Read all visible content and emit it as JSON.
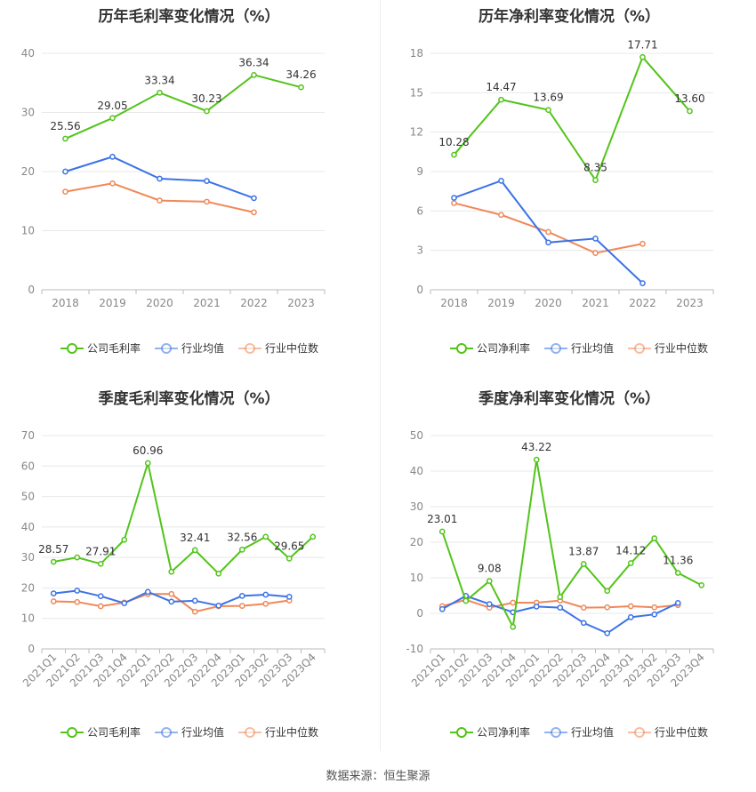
{
  "footer": "数据来源：恒生聚源",
  "colors": {
    "company": "#52c41a",
    "avg": "#3b73e6",
    "median": "#f08858",
    "grid": "#e8e8e8",
    "axis": "#bbbbbb"
  },
  "chart_data": [
    {
      "type": "line",
      "title": "历年毛利率变化情况（%）",
      "categories": [
        "2018",
        "2019",
        "2020",
        "2021",
        "2022",
        "2023"
      ],
      "ylim": [
        0,
        40
      ],
      "yticks": [
        0,
        10,
        20,
        30,
        40
      ],
      "series": [
        {
          "name": "公司毛利率",
          "values": [
            25.56,
            29.05,
            33.34,
            30.23,
            36.34,
            34.26
          ],
          "labels": [
            "25.56",
            "29.05",
            "33.34",
            "30.23",
            "36.34",
            "34.26"
          ]
        },
        {
          "name": "行业均值",
          "values": [
            20.0,
            22.5,
            18.8,
            18.4,
            15.5,
            null
          ]
        },
        {
          "name": "行业中位数",
          "values": [
            16.6,
            18.0,
            15.1,
            14.9,
            13.1,
            null
          ]
        }
      ],
      "legend": "bottom",
      "grid": true
    },
    {
      "type": "line",
      "title": "历年净利率变化情况（%）",
      "categories": [
        "2018",
        "2019",
        "2020",
        "2021",
        "2022",
        "2023"
      ],
      "ylim": [
        0,
        18
      ],
      "yticks": [
        0,
        3,
        6,
        9,
        12,
        15,
        18
      ],
      "series": [
        {
          "name": "公司净利率",
          "values": [
            10.28,
            14.47,
            13.69,
            8.35,
            17.71,
            13.6
          ],
          "labels": [
            "10.28",
            "14.47",
            "13.69",
            "8.35",
            "17.71",
            "13.60"
          ]
        },
        {
          "name": "行业均值",
          "values": [
            7.0,
            8.3,
            3.6,
            3.9,
            0.5,
            null
          ]
        },
        {
          "name": "行业中位数",
          "values": [
            6.6,
            5.7,
            4.4,
            2.8,
            3.5,
            null
          ]
        }
      ],
      "legend": "bottom",
      "grid": true
    },
    {
      "type": "line",
      "title": "季度毛利率变化情况（%）",
      "categories": [
        "2021Q1",
        "2021Q2",
        "2021Q3",
        "2021Q4",
        "2022Q1",
        "2022Q2",
        "2022Q3",
        "2022Q4",
        "2023Q1",
        "2023Q2",
        "2023Q3",
        "2023Q4"
      ],
      "ylim": [
        0,
        70
      ],
      "yticks": [
        0,
        10,
        20,
        30,
        40,
        50,
        60,
        70
      ],
      "series": [
        {
          "name": "公司毛利率",
          "values": [
            28.57,
            30.0,
            27.91,
            35.8,
            60.96,
            25.3,
            32.41,
            24.7,
            32.56,
            36.8,
            29.65,
            36.8
          ],
          "labels": [
            "28.57",
            "",
            "27.91",
            "",
            "60.96",
            "",
            "32.41",
            "",
            "32.56",
            "",
            "29.65",
            ""
          ]
        },
        {
          "name": "行业均值",
          "values": [
            18.2,
            19.1,
            17.3,
            15.0,
            18.7,
            15.5,
            15.8,
            14.2,
            17.4,
            17.8,
            17.1,
            null
          ]
        },
        {
          "name": "行业中位数",
          "values": [
            15.6,
            15.4,
            14.0,
            15.2,
            18.0,
            18.0,
            12.2,
            14.0,
            14.1,
            14.8,
            15.9,
            null
          ]
        }
      ],
      "legend": "bottom",
      "grid": true
    },
    {
      "type": "line",
      "title": "季度净利率变化情况（%）",
      "categories": [
        "2021Q1",
        "2021Q2",
        "2021Q3",
        "2021Q4",
        "2022Q1",
        "2022Q2",
        "2022Q3",
        "2022Q4",
        "2023Q1",
        "2023Q2",
        "2023Q3",
        "2023Q4"
      ],
      "ylim": [
        -10,
        50
      ],
      "yticks": [
        -10,
        0,
        10,
        20,
        30,
        40,
        50
      ],
      "series": [
        {
          "name": "公司净利率",
          "values": [
            23.01,
            3.5,
            9.08,
            -3.8,
            43.22,
            4.6,
            13.87,
            6.3,
            14.12,
            21.1,
            11.36,
            7.9
          ],
          "labels": [
            "23.01",
            "",
            "9.08",
            "",
            "43.22",
            "",
            "13.87",
            "",
            "14.12",
            "",
            "11.36",
            ""
          ]
        },
        {
          "name": "行业均值",
          "values": [
            1.2,
            4.9,
            2.6,
            0.3,
            1.9,
            1.6,
            -2.7,
            -5.6,
            -1.1,
            -0.3,
            2.9,
            null
          ]
        },
        {
          "name": "行业中位数",
          "values": [
            2.0,
            3.8,
            1.6,
            3.0,
            3.0,
            3.6,
            1.6,
            1.7,
            2.0,
            1.7,
            2.3,
            null
          ]
        }
      ],
      "legend": "bottom",
      "grid": true
    }
  ]
}
